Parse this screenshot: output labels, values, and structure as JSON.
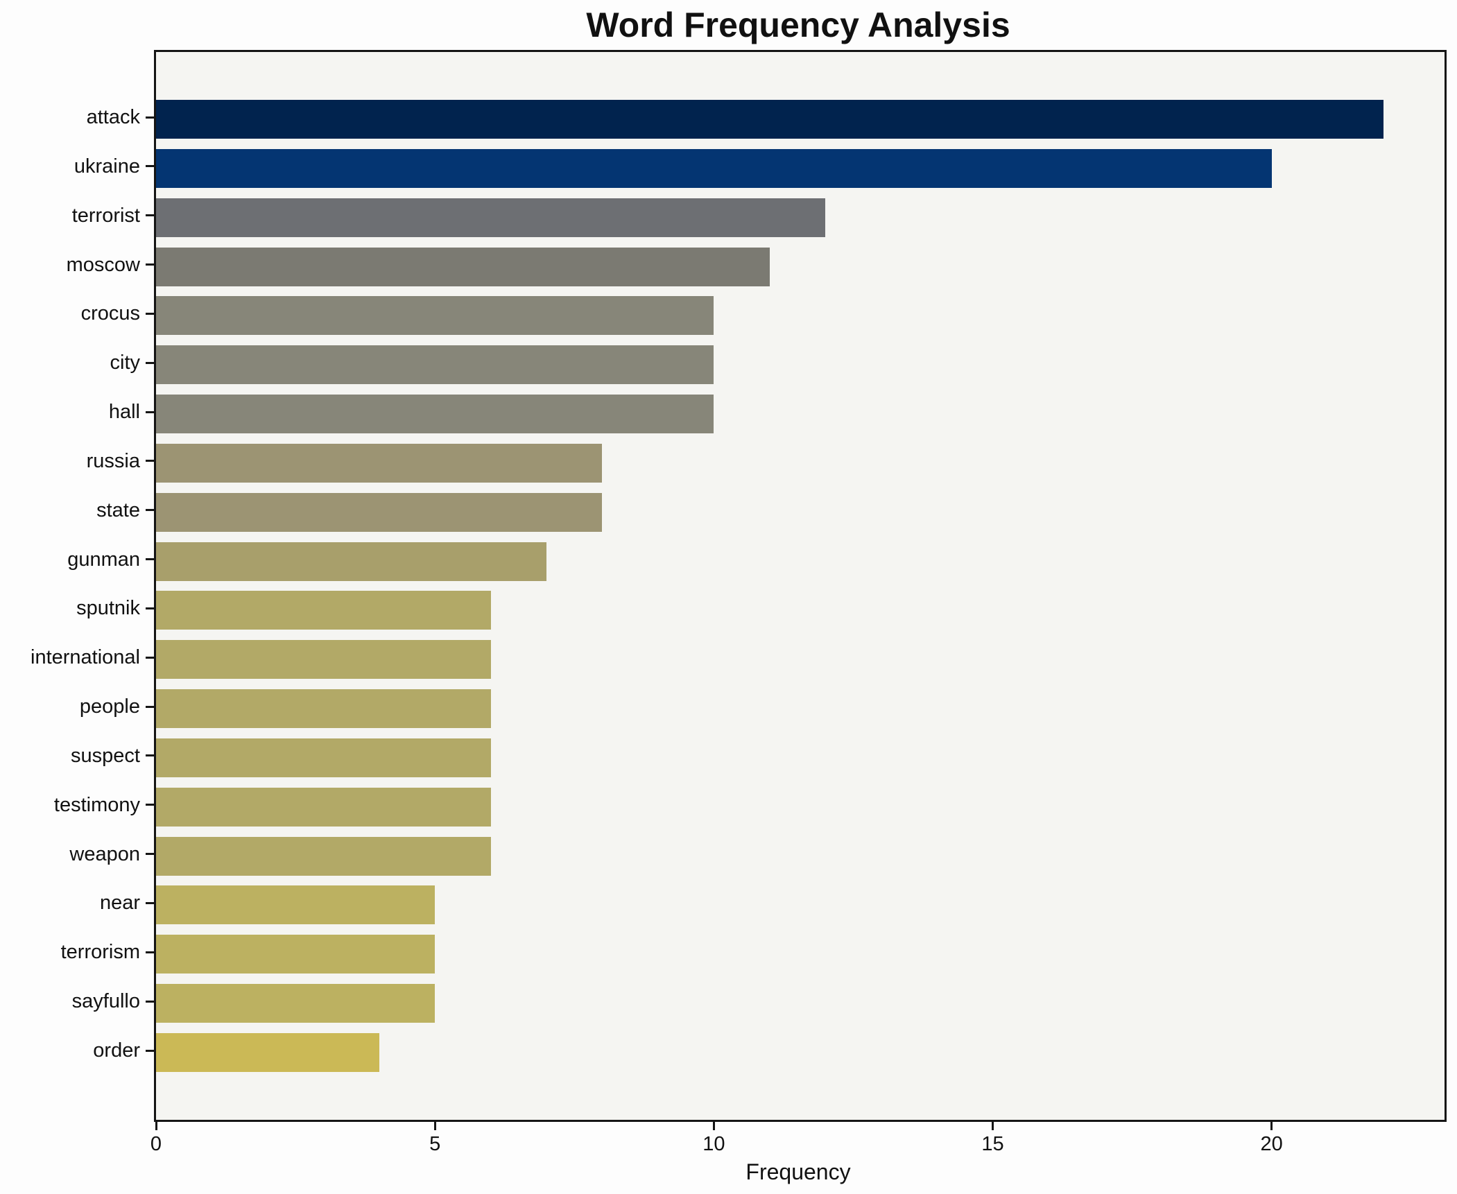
{
  "chart_data": {
    "type": "bar",
    "orientation": "horizontal",
    "title": "Word Frequency Analysis",
    "xlabel": "Frequency",
    "ylabel": "",
    "categories": [
      "attack",
      "ukraine",
      "terrorist",
      "moscow",
      "crocus",
      "city",
      "hall",
      "russia",
      "state",
      "gunman",
      "sputnik",
      "international",
      "people",
      "suspect",
      "testimony",
      "weapon",
      "near",
      "terrorism",
      "sayfullo",
      "order"
    ],
    "values": [
      22,
      20,
      12,
      11,
      10,
      10,
      10,
      8,
      8,
      7,
      6,
      6,
      6,
      6,
      6,
      6,
      5,
      5,
      5,
      4
    ],
    "colors": [
      "#01234e",
      "#043572",
      "#6d6f73",
      "#7b7a72",
      "#878679",
      "#878679",
      "#878679",
      "#9c9473",
      "#9c9473",
      "#a89f6b",
      "#b2a967",
      "#b2a967",
      "#b2a967",
      "#b2a967",
      "#b2a967",
      "#b2a967",
      "#bcb161",
      "#bcb161",
      "#bcb161",
      "#cbb956"
    ],
    "xticks": [
      0,
      5,
      10,
      15,
      20
    ],
    "xlim": [
      0,
      23.1
    ],
    "grid": false,
    "legend": null,
    "bar_relative_height": 0.8,
    "plot_background": "#f5f5f2",
    "figure_background": "#fdfdfd",
    "spine_color": "#151515",
    "text_color": "#111111"
  }
}
